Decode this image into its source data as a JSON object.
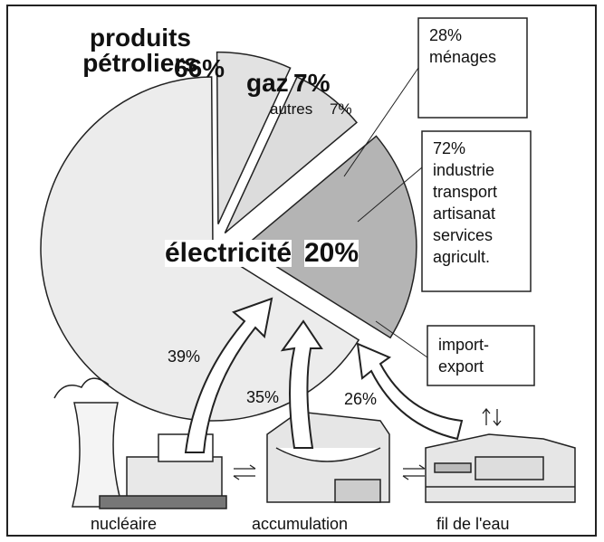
{
  "chart_data": {
    "type": "pie",
    "categories": [
      "produits pétroliers",
      "gaz",
      "autres",
      "électricité"
    ],
    "values": [
      66,
      7,
      7,
      20
    ],
    "value_labels": [
      "66%",
      "7%",
      "7%",
      "20%"
    ],
    "colors": [
      "#ececec",
      "#e2e2e2",
      "#dcdcdc",
      "#b4b4b4"
    ]
  },
  "callouts": [
    {
      "percent": "28%",
      "lines": [
        "ménages"
      ]
    },
    {
      "percent": "72%",
      "lines": [
        "industrie",
        "transport",
        "artisanat",
        "services",
        "agricult."
      ]
    },
    {
      "lines": [
        "import-",
        "export"
      ]
    }
  ],
  "sources": [
    {
      "percent": "39%",
      "label": "nucléaire"
    },
    {
      "percent": "35%",
      "label": "accumulation"
    },
    {
      "percent": "26%",
      "label": "fil de l'eau"
    }
  ]
}
